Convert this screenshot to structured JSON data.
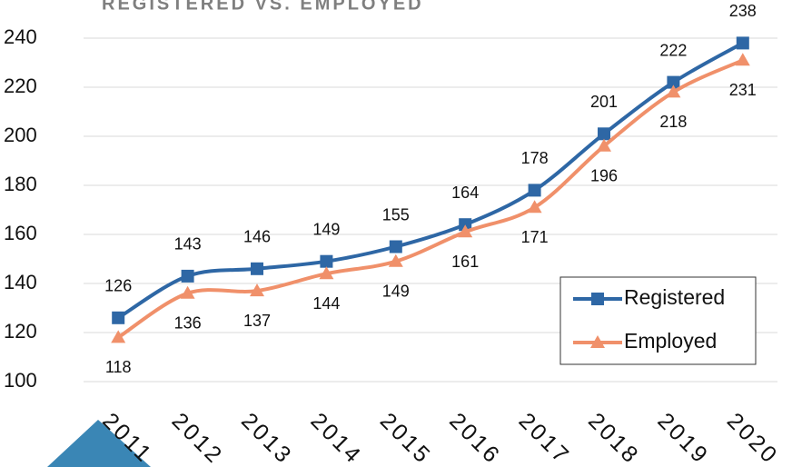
{
  "chart_data": {
    "type": "line",
    "title": "REGISTERED VS. EMPLOYED",
    "categories": [
      "2011",
      "2012",
      "2013",
      "2014",
      "2015",
      "2016",
      "2017",
      "2018",
      "2019",
      "2020"
    ],
    "series": [
      {
        "name": "Registered",
        "color": "#2e67a5",
        "marker": "square",
        "values": [
          126,
          143,
          146,
          149,
          155,
          164,
          178,
          201,
          222,
          238
        ]
      },
      {
        "name": "Employed",
        "color": "#f0906a",
        "marker": "triangle",
        "values": [
          118,
          136,
          137,
          144,
          149,
          161,
          171,
          196,
          218,
          231
        ]
      }
    ],
    "ylim": [
      100,
      240
    ],
    "yticks": [
      100,
      120,
      140,
      160,
      180,
      200,
      220,
      240
    ],
    "grid": true,
    "smooth": true,
    "legend": "lower right"
  }
}
